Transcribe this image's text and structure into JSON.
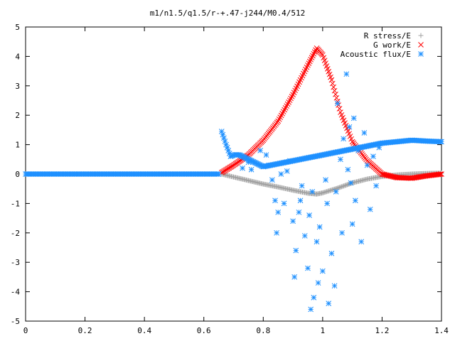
{
  "chart_data": {
    "type": "scatter",
    "title": "m1/n1.5/q1.5/r-+.47-j244/M0.4/512",
    "xlabel": "",
    "ylabel": "",
    "xlim": [
      0,
      1.4
    ],
    "ylim": [
      -5,
      5
    ],
    "xticks": [
      0,
      0.2,
      0.4,
      0.6,
      0.8,
      1,
      1.2,
      1.4
    ],
    "xtick_labels": [
      "0",
      "0.2",
      "0.4",
      "0.6",
      "0.8",
      "1",
      "1.2",
      "1.4"
    ],
    "yticks": [
      -5,
      -4,
      -3,
      -2,
      -1,
      0,
      1,
      2,
      3,
      4,
      5
    ],
    "ytick_labels": [
      "-5",
      "-4",
      "-3",
      "-2",
      "-1",
      "0",
      "1",
      "2",
      "3",
      "4",
      "5"
    ],
    "grid": false,
    "legend_position": "top-right",
    "series": [
      {
        "name": "R stress/E",
        "marker": "plus",
        "color": "#a0a0a0",
        "points": [
          [
            0.66,
            0.0
          ],
          [
            0.7,
            -0.1
          ],
          [
            0.75,
            -0.22
          ],
          [
            0.8,
            -0.34
          ],
          [
            0.85,
            -0.44
          ],
          [
            0.9,
            -0.55
          ],
          [
            0.95,
            -0.65
          ],
          [
            0.98,
            -0.68
          ],
          [
            1.0,
            -0.64
          ],
          [
            1.05,
            -0.48
          ],
          [
            1.1,
            -0.3
          ],
          [
            1.15,
            -0.17
          ],
          [
            1.2,
            -0.08
          ],
          [
            1.25,
            -0.03
          ],
          [
            1.3,
            0.0
          ],
          [
            1.35,
            0.02
          ],
          [
            1.4,
            0.03
          ]
        ]
      },
      {
        "name": "G work/E",
        "marker": "cross",
        "color": "#ff0000",
        "points": [
          [
            0.66,
            0.05
          ],
          [
            0.7,
            0.3
          ],
          [
            0.75,
            0.65
          ],
          [
            0.8,
            1.15
          ],
          [
            0.85,
            1.8
          ],
          [
            0.9,
            2.7
          ],
          [
            0.95,
            3.7
          ],
          [
            0.98,
            4.28
          ],
          [
            1.0,
            4.05
          ],
          [
            1.03,
            3.2
          ],
          [
            1.06,
            2.1
          ],
          [
            1.1,
            1.1
          ],
          [
            1.15,
            0.45
          ],
          [
            1.2,
            0.0
          ],
          [
            1.25,
            -0.12
          ],
          [
            1.3,
            -0.14
          ],
          [
            1.35,
            -0.06
          ],
          [
            1.4,
            0.0
          ]
        ]
      },
      {
        "name": "Acoustic flux/E",
        "marker": "star",
        "color": "#1e90ff",
        "baseline": [
          [
            0.0,
            0.0
          ],
          [
            0.65,
            0.0
          ]
        ],
        "curve": [
          [
            0.66,
            1.45
          ],
          [
            0.675,
            1.0
          ],
          [
            0.69,
            0.6
          ],
          [
            0.705,
            0.66
          ],
          [
            0.72,
            0.65
          ],
          [
            0.74,
            0.55
          ],
          [
            0.76,
            0.45
          ],
          [
            0.78,
            0.35
          ],
          [
            0.8,
            0.25
          ],
          [
            1.2,
            1.05
          ],
          [
            1.25,
            1.1
          ],
          [
            1.3,
            1.15
          ],
          [
            1.35,
            1.12
          ],
          [
            1.4,
            1.1
          ]
        ],
        "scatter": [
          [
            0.73,
            0.2
          ],
          [
            0.75,
            0.4
          ],
          [
            0.76,
            0.15
          ],
          [
            0.79,
            0.8
          ],
          [
            0.81,
            0.65
          ],
          [
            0.82,
            0.3
          ],
          [
            0.83,
            -0.2
          ],
          [
            0.84,
            -0.9
          ],
          [
            0.85,
            -1.3
          ],
          [
            0.86,
            0.0
          ],
          [
            0.87,
            -1.0
          ],
          [
            0.88,
            0.1
          ],
          [
            0.89,
            0.45
          ],
          [
            0.9,
            -1.6
          ],
          [
            0.91,
            -2.6
          ],
          [
            0.92,
            -1.3
          ],
          [
            0.93,
            -0.4
          ],
          [
            0.94,
            -2.1
          ],
          [
            0.95,
            -3.2
          ],
          [
            0.96,
            -4.6
          ],
          [
            0.97,
            -4.2
          ],
          [
            0.98,
            -2.3
          ],
          [
            0.99,
            -1.8
          ],
          [
            1.0,
            -3.3
          ],
          [
            1.01,
            -0.2
          ],
          [
            1.02,
            -4.4
          ],
          [
            1.03,
            -2.7
          ],
          [
            1.04,
            -3.8
          ],
          [
            1.05,
            2.4
          ],
          [
            1.06,
            0.5
          ],
          [
            1.07,
            1.2
          ],
          [
            1.08,
            3.4
          ],
          [
            1.09,
            1.6
          ],
          [
            1.1,
            -1.7
          ],
          [
            1.11,
            -0.9
          ],
          [
            1.12,
            0.8
          ],
          [
            1.13,
            -2.3
          ],
          [
            1.14,
            1.4
          ],
          [
            1.15,
            0.3
          ],
          [
            1.16,
            -1.2
          ],
          [
            1.17,
            0.6
          ],
          [
            1.18,
            -0.4
          ],
          [
            1.19,
            0.9
          ],
          [
            0.845,
            -2.0
          ],
          [
            0.905,
            -3.5
          ],
          [
            0.925,
            -0.9
          ],
          [
            0.955,
            -1.4
          ],
          [
            0.965,
            -0.6
          ],
          [
            0.985,
            -3.7
          ],
          [
            1.015,
            -1.0
          ],
          [
            1.045,
            -0.6
          ],
          [
            1.065,
            -2.0
          ],
          [
            1.085,
            0.15
          ],
          [
            1.095,
            -0.3
          ],
          [
            1.105,
            1.9
          ]
        ]
      }
    ]
  }
}
